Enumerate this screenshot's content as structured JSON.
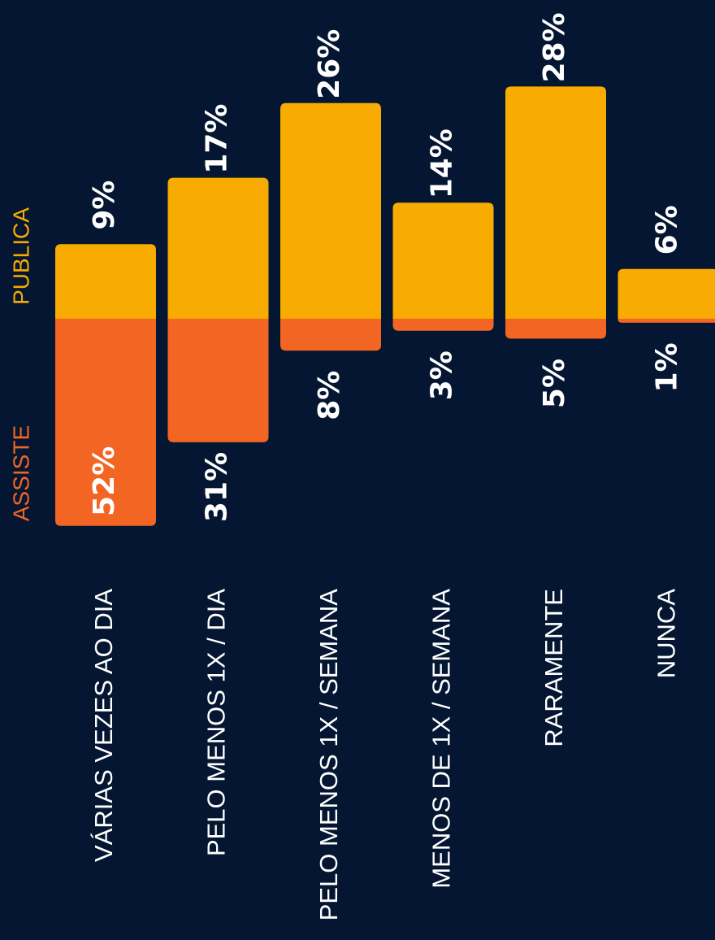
{
  "chart_data": {
    "type": "diverging-bar",
    "categories": [
      "VÁRIAS VEZES AO DIA",
      "PELO MENOS 1X / DIA",
      "PELO MENOS 1X / SEMANA",
      "MENOS DE  1X / SEMANA",
      "RARAMENTE",
      "NUNCA"
    ],
    "series": [
      {
        "name": "PUBLICA",
        "color": "#f8ab00",
        "values": [
          9,
          17,
          26,
          14,
          28,
          6
        ],
        "value_labels": [
          "9%",
          "17%",
          "26%",
          "14%",
          "28%",
          "6%"
        ]
      },
      {
        "name": "ASSISTE",
        "color": "#f26522",
        "values": [
          52,
          31,
          8,
          3,
          5,
          1
        ],
        "value_labels": [
          "52%",
          "31%",
          "8%",
          "3%",
          "5%",
          "1%"
        ]
      }
    ]
  }
}
